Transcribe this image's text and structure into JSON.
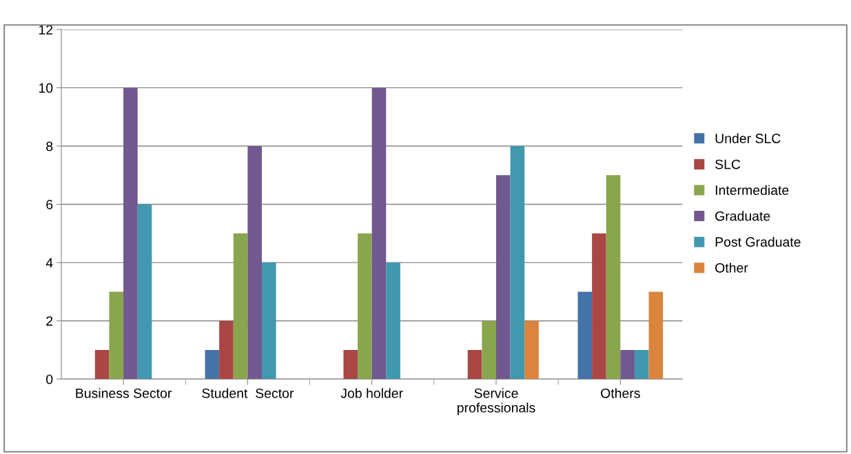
{
  "chart_data": {
    "type": "bar",
    "categories": [
      "Business Sector",
      "Student  Sector",
      "Job holder",
      "Service\nprofessionals",
      "Others"
    ],
    "series": [
      {
        "name": "Under SLC",
        "color": "#4572a7",
        "values": [
          0,
          1,
          0,
          0,
          3
        ]
      },
      {
        "name": "SLC",
        "color": "#aa4643",
        "values": [
          1,
          2,
          1,
          1,
          5
        ]
      },
      {
        "name": "Intermediate",
        "color": "#89a54e",
        "values": [
          3,
          5,
          5,
          2,
          7
        ]
      },
      {
        "name": "Graduate",
        "color": "#71588f",
        "values": [
          10,
          8,
          10,
          7,
          1
        ]
      },
      {
        "name": "Post Graduate",
        "color": "#4198af",
        "values": [
          6,
          4,
          4,
          8,
          1
        ]
      },
      {
        "name": "Other",
        "color": "#db843d",
        "values": [
          0,
          0,
          0,
          2,
          3
        ]
      }
    ],
    "ylim": [
      0,
      12
    ],
    "yticks": [
      0,
      2,
      4,
      6,
      8,
      10,
      12
    ],
    "grid": "y",
    "legend": "right"
  }
}
